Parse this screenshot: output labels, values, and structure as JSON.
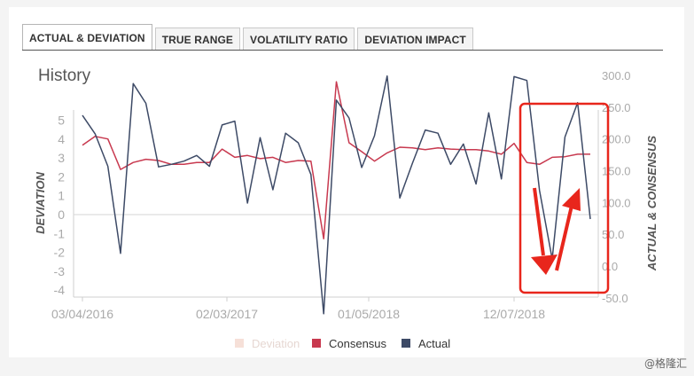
{
  "tabs": [
    {
      "label": "ACTUAL & DEVIATION"
    },
    {
      "label": "TRUE RANGE"
    },
    {
      "label": "VOLATILITY RATIO"
    },
    {
      "label": "DEVIATION IMPACT"
    }
  ],
  "section_title": "History",
  "watermark": "@格隆汇",
  "chart_data": {
    "type": "line",
    "title": "History",
    "ylabel": "DEVIATION",
    "y2label": "ACTUAL & CONSENSUS",
    "x_ticks": [
      "03/04/2016",
      "02/03/2017",
      "01/05/2018",
      "12/07/2018"
    ],
    "y_ticks": [
      "5",
      "4",
      "3",
      "2",
      "1",
      "0",
      "-1",
      "-2",
      "-3",
      "-4"
    ],
    "y2_ticks": [
      "300.0",
      "250.0",
      "200.0",
      "150.0",
      "100.0",
      "50.0",
      "0.0",
      "-50.0"
    ],
    "ylim": [
      -4,
      5
    ],
    "y2lim": [
      -50,
      300
    ],
    "legend": [
      "Deviation",
      "Consensus",
      "Actual"
    ],
    "legend_position": "bottom",
    "colors": {
      "deviation": "#f6e0d8",
      "consensus": "#c8394f",
      "actual": "#3d4a66",
      "highlight": "#e8261c"
    },
    "series": [
      {
        "name": "Consensus",
        "axis": "right",
        "values": [
          190,
          204,
          200,
          152,
          163,
          168,
          166,
          160,
          160,
          163,
          163,
          184,
          171,
          174,
          169,
          171,
          163,
          166,
          165,
          43,
          290,
          194,
          180,
          165,
          178,
          187,
          186,
          183,
          186,
          184,
          183,
          183,
          181,
          176,
          193,
          163,
          160,
          171,
          172,
          176,
          176
        ]
      },
      {
        "name": "Actual",
        "axis": "right",
        "values": [
          237,
          208,
          157,
          20,
          287,
          256,
          156,
          160,
          165,
          174,
          157,
          222,
          228,
          99,
          202,
          120,
          209,
          194,
          144,
          -75,
          261,
          233,
          155,
          205,
          299,
          107,
          162,
          214,
          209,
          160,
          192,
          129,
          241,
          137,
          298,
          292,
          119,
          11,
          203,
          257,
          74
        ]
      }
    ]
  }
}
